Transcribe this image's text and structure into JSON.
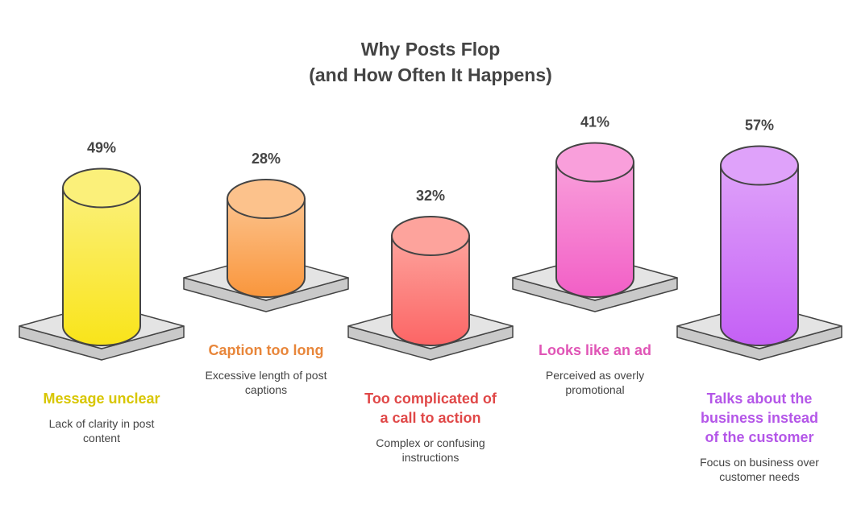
{
  "chart_data": {
    "type": "cylinder",
    "title": [
      "Why Posts Flop",
      "(and How Often It Happens)"
    ],
    "categories": [
      "Message unclear",
      "Caption too long",
      "Too complicated of a call to action",
      "Looks like an ad",
      "Talks about the business instead of the customer"
    ],
    "descriptions": [
      "Lack of clarity in post content",
      "Excessive length of post captions",
      "Complex or confusing instructions",
      "Perceived as overly promotional",
      "Focus on business over customer needs"
    ],
    "values": [
      49,
      28,
      32,
      41,
      57
    ],
    "value_labels": [
      "49%",
      "28%",
      "32%",
      "41%",
      "57%"
    ],
    "colors": [
      "#f9e41a",
      "#f9963c",
      "#fc6565",
      "#f25fc6",
      "#c460f5"
    ],
    "top_colors": [
      "#fbf07a",
      "#fcc28c",
      "#fda39c",
      "#f99fdb",
      "#dfa2fa"
    ],
    "text_colors": [
      "#d8c600",
      "#e8863a",
      "#e04848",
      "#e055b6",
      "#b456e8"
    ]
  }
}
